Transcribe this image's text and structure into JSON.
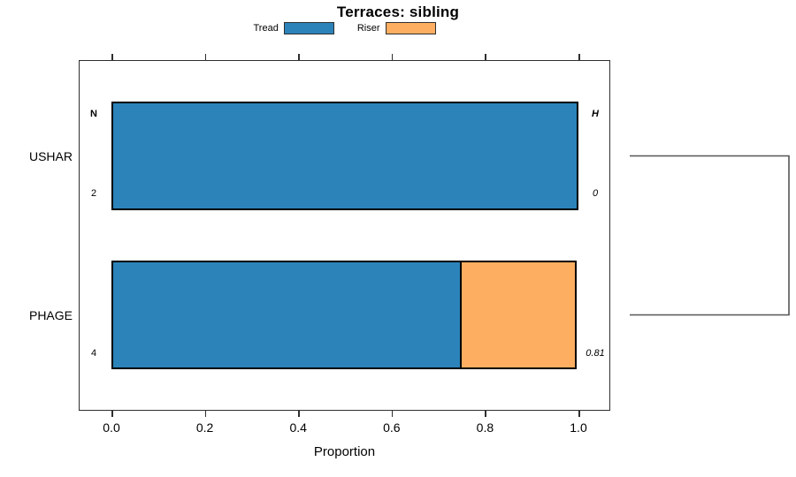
{
  "chart_data": {
    "type": "bar",
    "orientation": "horizontal",
    "stacked": true,
    "title": "Terraces: sibling",
    "xlabel": "Proportion",
    "xlim": [
      0,
      1
    ],
    "xticks": [
      "0.0",
      "0.2",
      "0.4",
      "0.6",
      "0.8",
      "1.0"
    ],
    "categories": [
      "USHAR",
      "PHAGE"
    ],
    "series": [
      {
        "name": "Tread",
        "color": "#2b83ba",
        "values": [
          1.0,
          0.75
        ]
      },
      {
        "name": "Riser",
        "color": "#fdae61",
        "values": [
          0.0,
          0.25
        ]
      }
    ],
    "annotations": {
      "left_header": "N",
      "right_header": "H",
      "rows": [
        {
          "category": "USHAR",
          "n": "2",
          "h": "0"
        },
        {
          "category": "PHAGE",
          "n": "4",
          "h": "0.81"
        }
      ]
    },
    "dendrogram": {
      "type": "bracket",
      "connects": [
        "USHAR",
        "PHAGE"
      ]
    },
    "legend_position": "top",
    "grid": false,
    "colors": {
      "tread": "#2b83ba",
      "riser": "#fdae61",
      "bar_border": "#000000",
      "frame": "#2e2e2e",
      "dendrogram_line": "#555555"
    }
  }
}
